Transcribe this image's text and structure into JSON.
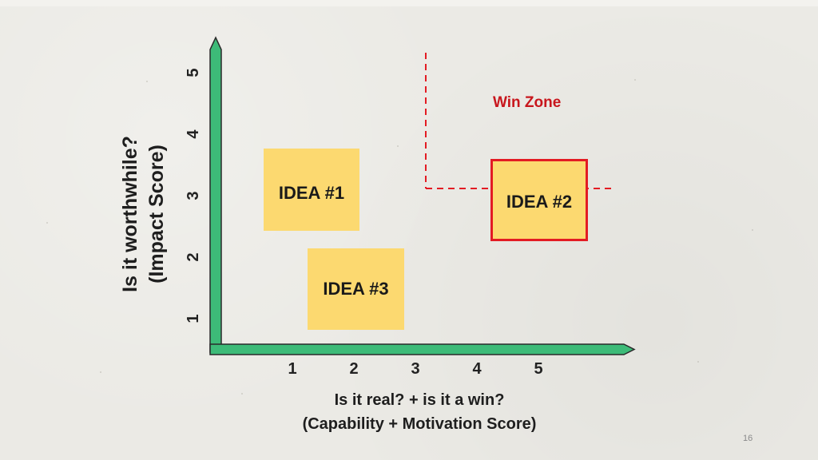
{
  "axes": {
    "y_title_lines": [
      "Is it worthwhile?",
      "(Impact Score)"
    ],
    "x_title_lines": [
      "Is it real? + is it a win?",
      "(Capability + Motivation Score)"
    ],
    "y_ticks": [
      "1",
      "2",
      "3",
      "4",
      "5"
    ],
    "x_ticks": [
      "1",
      "2",
      "3",
      "4",
      "5"
    ],
    "axis_color": "#3dbb78",
    "axis_outline_color": "#2a2a2a"
  },
  "ideas": [
    {
      "label": "IDEA #1",
      "color": "#fcd970"
    },
    {
      "label": "IDEA #2",
      "color": "#fcd970",
      "border_color": "#e31b23"
    },
    {
      "label": "IDEA #3",
      "color": "#fcd970"
    }
  ],
  "win_zone": {
    "label": "Win Zone",
    "color": "#c8161d",
    "line_color": "#e31b23"
  },
  "page_number": "16"
}
